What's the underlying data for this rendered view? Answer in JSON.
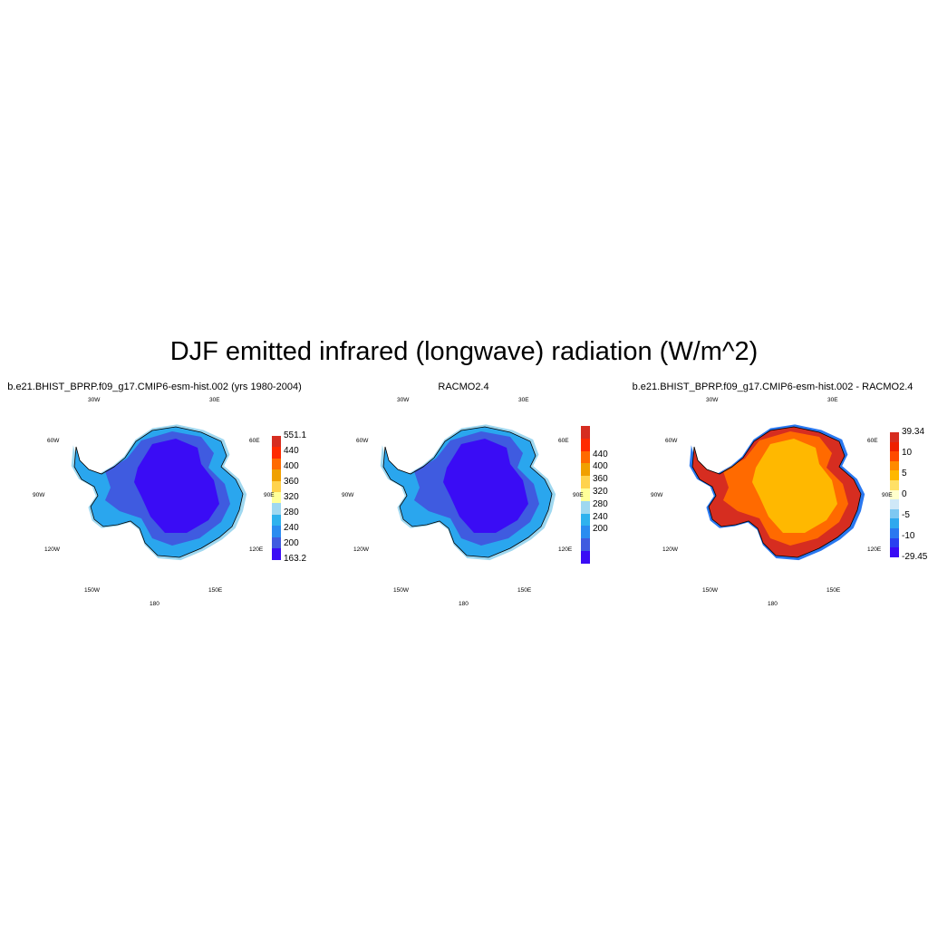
{
  "figure": {
    "title": "DJF emitted infrared (longwave) radiation (W/m^2)"
  },
  "longitude_labels": {
    "w30": "30W",
    "e30": "30E",
    "w60": "60W",
    "e60": "60E",
    "w90": "90W",
    "e90": "90E",
    "w120": "120W",
    "e120": "120E",
    "w150": "150W",
    "e150": "150E",
    "s180": "180"
  },
  "panels": [
    {
      "title": "b.e21.BHIST_BPRP.f09_g17.CMIP6-esm-hist.002 (yrs 1980-2004)",
      "colorbar": {
        "labels": [
          "551.1",
          "440",
          "400",
          "360",
          "320",
          "280",
          "240",
          "200",
          "163.2"
        ],
        "colors": [
          "#d62d20",
          "#ff2a00",
          "#ff6a00",
          "#f0a000",
          "#ffd34d",
          "#ffff99",
          "#9fd8f0",
          "#2fb2ee",
          "#2a8cf0",
          "#3f5be0",
          "#3a0cf5"
        ]
      },
      "field": {
        "interior": "#3a0cf5",
        "middle": "#3f5be0",
        "coast": "#2aa6ee",
        "edge": "#9fd8f0"
      }
    },
    {
      "title": "RACMO2.4",
      "colorbar": {
        "labels": [
          "440",
          "400",
          "360",
          "320",
          "280",
          "240",
          "200"
        ],
        "colors": [
          "#d62d20",
          "#ff2a00",
          "#ff6a00",
          "#f0a000",
          "#ffd34d",
          "#ffff99",
          "#9fd8f0",
          "#2fb2ee",
          "#2a8cf0",
          "#3f5be0",
          "#3a0cf5"
        ]
      },
      "field": {
        "interior": "#3a0cf5",
        "middle": "#3f5be0",
        "coast": "#2aa6ee",
        "edge": "#9fd8f0"
      }
    },
    {
      "title": "b.e21.BHIST_BPRP.f09_g17.CMIP6-esm-hist.002 - RACMO2.4",
      "colorbar": {
        "labels": [
          "39.34",
          "10",
          "5",
          "0",
          "-5",
          "-10",
          "-29.45"
        ],
        "colors": [
          "#d62d20",
          "#ee1f00",
          "#ff4a00",
          "#ff8a00",
          "#ffb800",
          "#ffe066",
          "#ffffcc",
          "#cfe8f8",
          "#7ec8f2",
          "#2fa8ee",
          "#2a78f0",
          "#2a40f0",
          "#3a0cf5"
        ]
      },
      "field": {
        "interior": "#ffb800",
        "middle": "#ff6a00",
        "coast": "#d62d20",
        "edge": "#2a78f0"
      }
    }
  ]
}
